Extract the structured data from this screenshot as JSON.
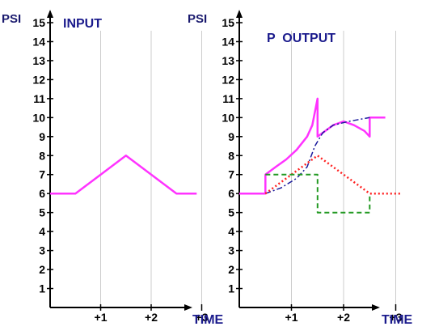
{
  "chart_data": [
    {
      "type": "line",
      "title": "INPUT",
      "xlabel": "TIME",
      "ylabel": "PSI",
      "ylim": [
        0,
        15
      ],
      "yticks": [
        1,
        2,
        3,
        4,
        5,
        6,
        7,
        8,
        9,
        10,
        11,
        12,
        13,
        14,
        15
      ],
      "x_tick_labels": [
        "+1",
        "+2",
        "+3"
      ],
      "x_ticks": [
        1,
        2,
        3
      ],
      "xlim": [
        0,
        3.6
      ],
      "grid": "vertical at ticks",
      "series": [
        {
          "color": "#ff33ff",
          "style": "solid",
          "points": [
            [
              0,
              6
            ],
            [
              0.5,
              6
            ],
            [
              1.5,
              8
            ],
            [
              2.5,
              6
            ],
            [
              2.9,
              6
            ]
          ]
        }
      ]
    },
    {
      "type": "line",
      "title": "P  OUTPUT",
      "xlabel": "TIME",
      "ylabel": "PSI",
      "ylim": [
        0,
        15
      ],
      "yticks": [
        1,
        2,
        3,
        4,
        5,
        6,
        7,
        8,
        9,
        10,
        11,
        12,
        13,
        14,
        15
      ],
      "x_tick_labels": [
        "+1",
        "+2",
        "+3"
      ],
      "x_ticks": [
        1,
        2,
        3
      ],
      "xlim": [
        0,
        3.6
      ],
      "grid": "vertical at ticks",
      "series": [
        {
          "color": "#ff33ff",
          "style": "solid",
          "points": [
            [
              0,
              6
            ],
            [
              0.5,
              6
            ],
            [
              0.5,
              7
            ],
            [
              0.7,
              7.4
            ],
            [
              0.9,
              7.8
            ],
            [
              1.1,
              8.3
            ],
            [
              1.3,
              9.0
            ],
            [
              1.4,
              9.6
            ],
            [
              1.5,
              11
            ],
            [
              1.5,
              9
            ],
            [
              1.8,
              9.6
            ],
            [
              2.0,
              9.8
            ],
            [
              2.2,
              9.6
            ],
            [
              2.4,
              9.3
            ],
            [
              2.5,
              9
            ],
            [
              2.5,
              10
            ],
            [
              2.8,
              10
            ]
          ]
        },
        {
          "color": "#1a1a9c",
          "style": "dashdot",
          "points": [
            [
              0.5,
              6
            ],
            [
              0.8,
              6.3
            ],
            [
              1.1,
              6.8
            ],
            [
              1.3,
              7.4
            ],
            [
              1.45,
              8.5
            ],
            [
              1.6,
              9.2
            ],
            [
              1.8,
              9.6
            ],
            [
              2.1,
              9.8
            ],
            [
              2.5,
              10
            ]
          ]
        },
        {
          "color": "#ff2222",
          "style": "dotted",
          "points": [
            [
              0.5,
              6
            ],
            [
              1.5,
              8
            ],
            [
              2.5,
              6
            ],
            [
              3.1,
              6
            ]
          ]
        },
        {
          "color": "#229922",
          "style": "dashed",
          "points": [
            [
              0.5,
              7
            ],
            [
              1.5,
              7
            ],
            [
              1.5,
              5
            ],
            [
              2.5,
              5
            ],
            [
              2.5,
              6
            ]
          ]
        }
      ]
    }
  ]
}
